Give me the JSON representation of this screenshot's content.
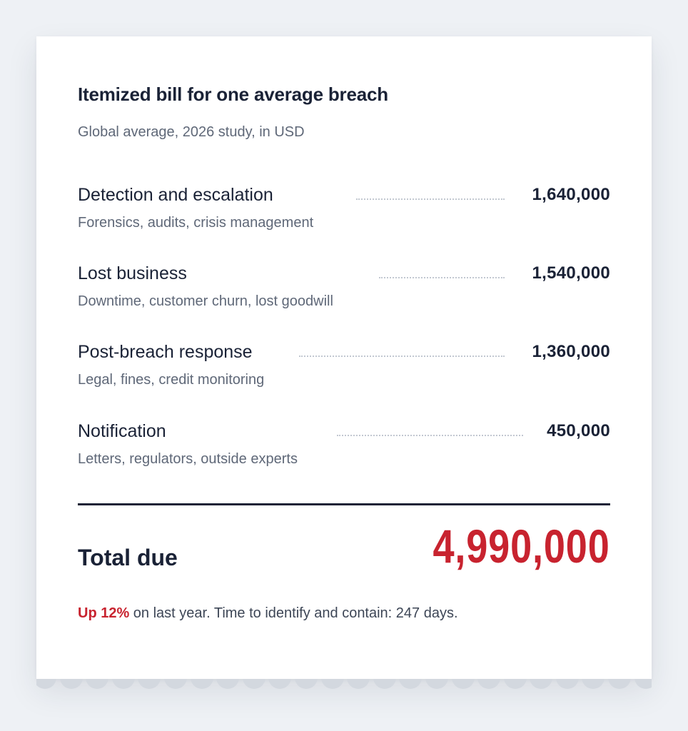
{
  "bill": {
    "title": "Itemized bill for one average breach",
    "subtitle": "Global average, 2026 study, in USD",
    "items": [
      {
        "label": "Detection and escalation",
        "amount": "1,640,000",
        "description": "Forensics, audits, crisis management"
      },
      {
        "label": "Lost business",
        "amount": "1,540,000",
        "description": "Downtime, customer churn, lost goodwill"
      },
      {
        "label": "Post-breach response",
        "amount": "1,360,000",
        "description": "Legal, fines, credit monitoring"
      },
      {
        "label": "Notification",
        "amount": "450,000",
        "description": "Letters, regulators, outside experts"
      }
    ],
    "total_label": "Total due",
    "total_amount": "4,990,000",
    "footnote_highlight": "Up 12%",
    "footnote_rest": " on last year. Time to identify and contain: 247 days."
  },
  "colors": {
    "background": "#eef1f5",
    "ink": "#1a2236",
    "muted": "#5f6878",
    "accent_red": "#c8232f"
  }
}
